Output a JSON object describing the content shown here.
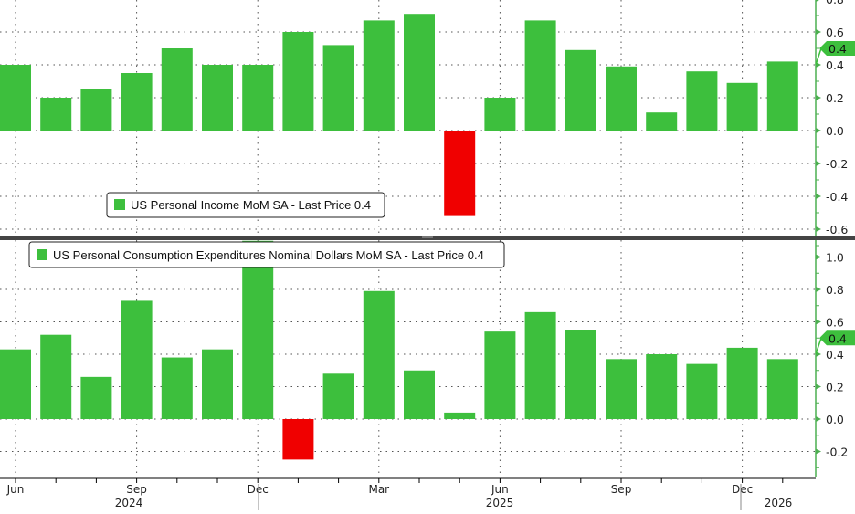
{
  "chart_data": [
    {
      "type": "bar",
      "title": "US Personal Income MoM SA - Last Price 0.4",
      "legend": {
        "label": "US Personal Income MoM SA - Last Price 0.4",
        "placement": "bottom-left"
      },
      "last_price_label": "0.4",
      "last_price": 0.4,
      "categories": [
        "Jun 2024",
        "Jul 2024",
        "Aug 2024",
        "Sep 2024",
        "Oct 2024",
        "Nov 2024",
        "Dec 2024",
        "Jan 2025",
        "Feb 2025",
        "Mar 2025",
        "Apr 2025",
        "May 2025",
        "Jun 2025",
        "Jul 2025",
        "Aug 2025",
        "Sep 2025",
        "Oct 2025",
        "Nov 2025",
        "Dec 2025",
        "Jan 2026"
      ],
      "values": [
        0.4,
        0.2,
        0.25,
        0.35,
        0.5,
        0.4,
        0.4,
        0.6,
        0.52,
        0.67,
        0.71,
        -0.52,
        0.2,
        0.67,
        0.49,
        0.39,
        0.11,
        0.36,
        0.29,
        0.42
      ],
      "ylim": [
        -0.64,
        0.79
      ],
      "yticks": [
        "0.8",
        "0.6",
        "0.4",
        "0.2",
        "0.0",
        "-0.2",
        "-0.4",
        "-0.6"
      ],
      "ytick_values": [
        0.8,
        0.6,
        0.4,
        0.2,
        0.0,
        -0.2,
        -0.4,
        -0.6
      ],
      "grid": true
    },
    {
      "type": "bar",
      "title": "US Personal Consumption Expenditures Nominal Dollars MoM SA - Last Price 0.4",
      "legend": {
        "label": "US Personal Consumption Expenditures Nominal Dollars MoM SA - Last Price 0.4",
        "placement": "top-left"
      },
      "last_price_label": "0.4",
      "last_price": 0.4,
      "categories": [
        "Jun 2024",
        "Jul 2024",
        "Aug 2024",
        "Sep 2024",
        "Oct 2024",
        "Nov 2024",
        "Dec 2024",
        "Jan 2025",
        "Feb 2025",
        "Mar 2025",
        "Apr 2025",
        "May 2025",
        "Jun 2025",
        "Jul 2025",
        "Aug 2025",
        "Sep 2025",
        "Oct 2025",
        "Nov 2025",
        "Dec 2025",
        "Jan 2026"
      ],
      "values": [
        0.43,
        0.52,
        0.26,
        0.73,
        0.38,
        0.43,
        1.1,
        -0.25,
        0.28,
        0.79,
        0.3,
        0.04,
        0.54,
        0.66,
        0.55,
        0.37,
        0.4,
        0.34,
        0.44,
        0.37
      ],
      "ylim": [
        -0.36,
        1.1
      ],
      "yticks": [
        "1.0",
        "0.8",
        "0.6",
        "0.4",
        "0.2",
        "0.0",
        "-0.2"
      ],
      "ytick_values": [
        1.0,
        0.8,
        0.6,
        0.4,
        0.2,
        0.0,
        -0.2
      ],
      "grid": true
    }
  ],
  "xaxis": {
    "month_labels": [
      "Jun",
      "Sep",
      "Dec",
      "Mar",
      "Jun",
      "Sep",
      "Dec"
    ],
    "month_label_index": [
      0,
      3,
      6,
      9,
      12,
      15,
      18
    ],
    "year_labels": [
      "2024",
      "2025",
      "2026"
    ]
  },
  "colors": {
    "positive": "#3dbf3d",
    "negative": "#f00000",
    "axis": "#4caf50"
  }
}
